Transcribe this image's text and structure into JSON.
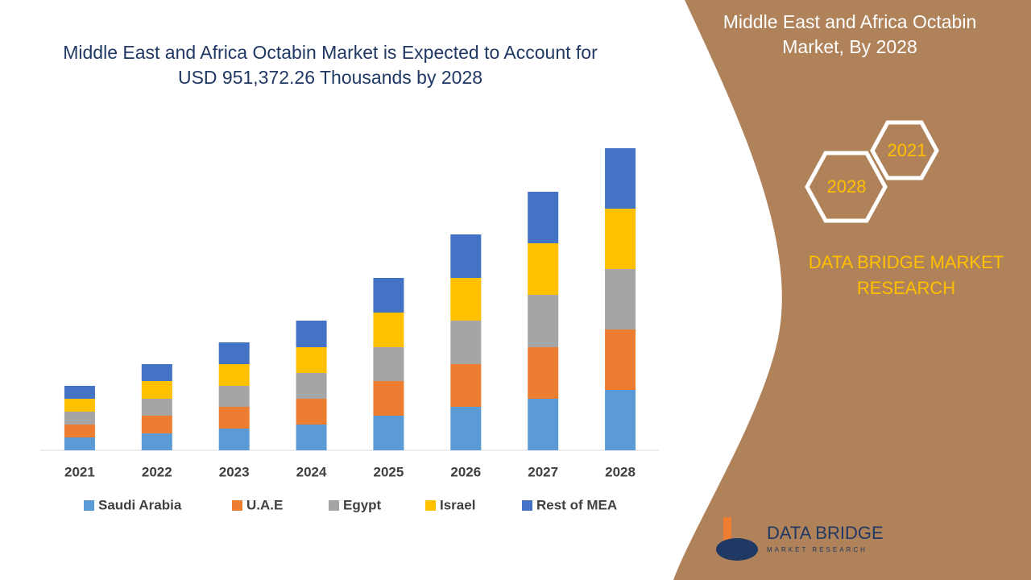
{
  "chart_data": {
    "type": "stacked-bar",
    "title": "Middle East and Africa Octabin Market is Expected to Account for USD 951,372.26 Thousands by 2028",
    "categories": [
      "2021",
      "2022",
      "2023",
      "2024",
      "2025",
      "2026",
      "2027",
      "2028"
    ],
    "series": [
      {
        "name": "Saudi Arabia",
        "color": "#5b9bd5",
        "values": [
          16,
          21,
          27,
          32,
          43,
          54,
          64,
          75
        ]
      },
      {
        "name": "U.A.E",
        "color": "#ed7d31",
        "values": [
          16,
          22,
          27,
          32,
          43,
          53,
          64,
          75
        ]
      },
      {
        "name": "Egypt",
        "color": "#a5a5a5",
        "values": [
          16,
          21,
          26,
          32,
          42,
          54,
          65,
          75
        ]
      },
      {
        "name": "Israel",
        "color": "#ffc000",
        "values": [
          16,
          22,
          27,
          32,
          43,
          53,
          64,
          75
        ]
      },
      {
        "name": "Rest of MEA",
        "color": "#4472c4",
        "values": [
          16,
          21,
          27,
          33,
          43,
          54,
          64,
          75
        ]
      }
    ],
    "legend": "bottom"
  },
  "side_panel": {
    "title": "Middle East and Africa Octabin Market, By 2028",
    "badges": [
      "2021",
      "2028"
    ],
    "brand": "DATA BRIDGE MARKET RESEARCH"
  },
  "logo": {
    "name": "DATA BRIDGE",
    "tagline": "MARKET RESEARCH"
  }
}
